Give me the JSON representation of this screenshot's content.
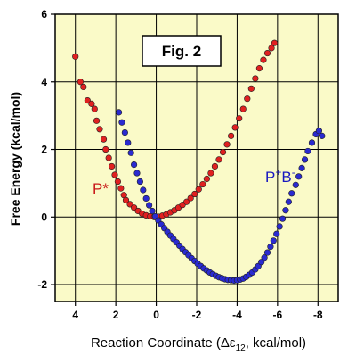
{
  "chart_data": {
    "type": "scatter",
    "xlabel": "Reaction Coordinate (Δε12, kcal/mol)",
    "xlabel_parts": {
      "before": "Reaction Coordinate (Δε",
      "subscript": "12",
      "after": ", kcal/mol)"
    },
    "ylabel": "Free Energy  (kcal/mol)",
    "xlim": [
      5,
      -9
    ],
    "ylim": [
      -2.5,
      6
    ],
    "x_ticks": [
      4,
      2,
      0,
      -2,
      -4,
      -6,
      -8
    ],
    "x_tick_labels": [
      "4",
      "2",
      "0",
      "-2",
      "-4",
      "-6",
      "-8"
    ],
    "y_ticks": [
      -2,
      0,
      2,
      4,
      6
    ],
    "y_tick_labels": [
      "-2",
      "0",
      "2",
      "4",
      "6"
    ],
    "grid": true,
    "plot_background": "#fafac8",
    "figure_label": "Fig. 2",
    "series": [
      {
        "label": "P*",
        "color": "#e02020",
        "marker": "circle",
        "points": [
          [
            4.0,
            4.75
          ],
          [
            3.75,
            4.0
          ],
          [
            3.6,
            3.85
          ],
          [
            3.4,
            3.45
          ],
          [
            3.2,
            3.35
          ],
          [
            3.05,
            3.2
          ],
          [
            2.95,
            2.85
          ],
          [
            2.8,
            2.6
          ],
          [
            2.6,
            2.3
          ],
          [
            2.5,
            2.0
          ],
          [
            2.35,
            1.75
          ],
          [
            2.2,
            1.5
          ],
          [
            2.05,
            1.25
          ],
          [
            1.9,
            1.05
          ],
          [
            1.75,
            0.85
          ],
          [
            1.6,
            0.65
          ],
          [
            1.5,
            0.5
          ],
          [
            1.3,
            0.38
          ],
          [
            1.1,
            0.28
          ],
          [
            0.9,
            0.18
          ],
          [
            0.7,
            0.1
          ],
          [
            0.5,
            0.05
          ],
          [
            0.3,
            0.02
          ],
          [
            0.1,
            0.0
          ],
          [
            -0.1,
            0.01
          ],
          [
            -0.3,
            0.04
          ],
          [
            -0.5,
            0.08
          ],
          [
            -0.7,
            0.14
          ],
          [
            -0.9,
            0.2
          ],
          [
            -1.1,
            0.28
          ],
          [
            -1.3,
            0.36
          ],
          [
            -1.5,
            0.45
          ],
          [
            -1.7,
            0.56
          ],
          [
            -1.9,
            0.68
          ],
          [
            -2.1,
            0.82
          ],
          [
            -2.3,
            0.97
          ],
          [
            -2.5,
            1.13
          ],
          [
            -2.7,
            1.3
          ],
          [
            -2.9,
            1.5
          ],
          [
            -3.1,
            1.7
          ],
          [
            -3.3,
            1.92
          ],
          [
            -3.5,
            2.15
          ],
          [
            -3.7,
            2.4
          ],
          [
            -3.9,
            2.65
          ],
          [
            -4.1,
            2.92
          ],
          [
            -4.3,
            3.2
          ],
          [
            -4.5,
            3.5
          ],
          [
            -4.7,
            3.8
          ],
          [
            -4.9,
            4.1
          ],
          [
            -5.1,
            4.4
          ],
          [
            -5.3,
            4.65
          ],
          [
            -5.5,
            4.85
          ],
          [
            -5.7,
            5.0
          ],
          [
            -5.85,
            5.15
          ]
        ]
      },
      {
        "label": "P+B-",
        "label_parts": {
          "base1": "P",
          "sup1": "+",
          "base2": "B",
          "sup2": "-"
        },
        "color": "#2a2ad0",
        "marker": "circle",
        "points": [
          [
            1.85,
            3.1
          ],
          [
            1.7,
            2.8
          ],
          [
            1.55,
            2.5
          ],
          [
            1.4,
            2.2
          ],
          [
            1.25,
            1.9
          ],
          [
            1.1,
            1.55
          ],
          [
            0.95,
            1.3
          ],
          [
            0.8,
            1.05
          ],
          [
            0.65,
            0.8
          ],
          [
            0.5,
            0.55
          ],
          [
            0.35,
            0.35
          ],
          [
            0.2,
            0.18
          ],
          [
            0.05,
            0.02
          ],
          [
            -0.1,
            -0.1
          ],
          [
            -0.25,
            -0.22
          ],
          [
            -0.4,
            -0.33
          ],
          [
            -0.55,
            -0.44
          ],
          [
            -0.7,
            -0.55
          ],
          [
            -0.85,
            -0.65
          ],
          [
            -1.0,
            -0.75
          ],
          [
            -1.15,
            -0.85
          ],
          [
            -1.3,
            -0.95
          ],
          [
            -1.45,
            -1.04
          ],
          [
            -1.6,
            -1.13
          ],
          [
            -1.75,
            -1.22
          ],
          [
            -1.9,
            -1.3
          ],
          [
            -2.05,
            -1.38
          ],
          [
            -2.2,
            -1.45
          ],
          [
            -2.35,
            -1.52
          ],
          [
            -2.5,
            -1.58
          ],
          [
            -2.65,
            -1.64
          ],
          [
            -2.8,
            -1.69
          ],
          [
            -2.95,
            -1.74
          ],
          [
            -3.1,
            -1.78
          ],
          [
            -3.25,
            -1.81
          ],
          [
            -3.4,
            -1.84
          ],
          [
            -3.55,
            -1.86
          ],
          [
            -3.7,
            -1.87
          ],
          [
            -3.85,
            -1.88
          ],
          [
            -4.0,
            -1.87
          ],
          [
            -4.15,
            -1.85
          ],
          [
            -4.3,
            -1.82
          ],
          [
            -4.45,
            -1.77
          ],
          [
            -4.6,
            -1.71
          ],
          [
            -4.75,
            -1.64
          ],
          [
            -4.9,
            -1.55
          ],
          [
            -5.05,
            -1.45
          ],
          [
            -5.2,
            -1.33
          ],
          [
            -5.35,
            -1.2
          ],
          [
            -5.5,
            -1.05
          ],
          [
            -5.65,
            -0.88
          ],
          [
            -5.8,
            -0.7
          ],
          [
            -5.95,
            -0.5
          ],
          [
            -6.1,
            -0.28
          ],
          [
            -6.25,
            -0.05
          ],
          [
            -6.4,
            0.2
          ],
          [
            -6.55,
            0.45
          ],
          [
            -6.7,
            0.7
          ],
          [
            -6.9,
            0.95
          ],
          [
            -7.05,
            1.2
          ],
          [
            -7.2,
            1.45
          ],
          [
            -7.35,
            1.7
          ],
          [
            -7.5,
            1.95
          ],
          [
            -7.7,
            2.2
          ],
          [
            -7.9,
            2.45
          ],
          [
            -8.05,
            2.55
          ],
          [
            -8.2,
            2.4
          ]
        ]
      }
    ]
  }
}
